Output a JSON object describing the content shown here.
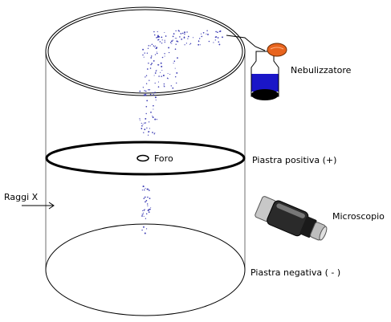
{
  "labels": {
    "nebulizer": "Nebulizzatore",
    "positive_plate": "Piastra positiva (+)",
    "hole": "Foro",
    "xrays": "Raggi X",
    "microscope": "Microscopio",
    "negative_plate": "Piastra negativa ( - )"
  },
  "colors": {
    "outline": "#000000",
    "cylinder": "#6f6f6f",
    "droplets": "#3c3cb4",
    "liquid": "#1a16c8",
    "bulb": "#e8641e"
  },
  "icons": {
    "nebulizer": "spray-bottle-icon",
    "microscope": "microscope-icon"
  }
}
